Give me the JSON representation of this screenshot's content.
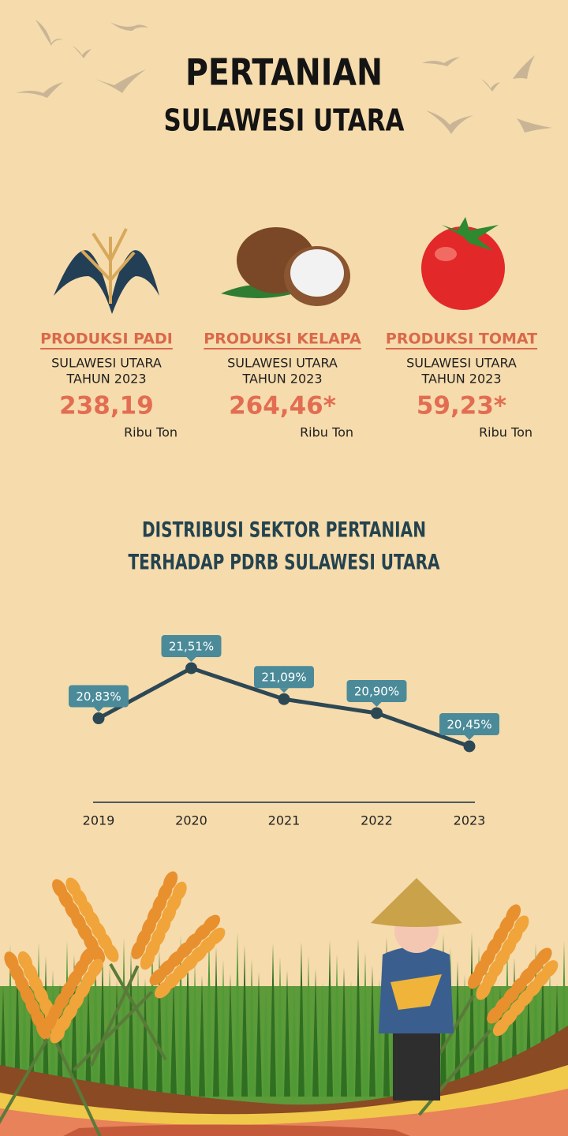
{
  "header": {
    "title": "PERTANIAN",
    "subtitle": "SULAWESI UTARA"
  },
  "stats": [
    {
      "label": "PRODUKSI PADI",
      "region": "SULAWESI UTARA",
      "year": "TAHUN 2023",
      "value": "238,19",
      "unit": "Ribu Ton"
    },
    {
      "label": "PRODUKSI KELAPA",
      "region": "SULAWESI UTARA",
      "year": "TAHUN 2023",
      "value": "264,46*",
      "unit": "Ribu Ton"
    },
    {
      "label": "PRODUKSI TOMAT",
      "region": "SULAWESI UTARA",
      "year": "TAHUN 2023",
      "value": "59,23*",
      "unit": "Ribu Ton"
    }
  ],
  "chart_data": {
    "type": "line",
    "title": "DISTRIBUSI SEKTOR PERTANIAN",
    "subtitle": "TERHADAP PDRB SULAWESI UTARA",
    "categories": [
      "2019",
      "2020",
      "2021",
      "2022",
      "2023"
    ],
    "values": [
      20.83,
      21.51,
      21.09,
      20.9,
      20.45
    ],
    "value_labels": [
      "20,83%",
      "21,51%",
      "21,09%",
      "20,90%",
      "20,45%"
    ],
    "color": "#2d4855",
    "label_color": "#4b8b99"
  }
}
